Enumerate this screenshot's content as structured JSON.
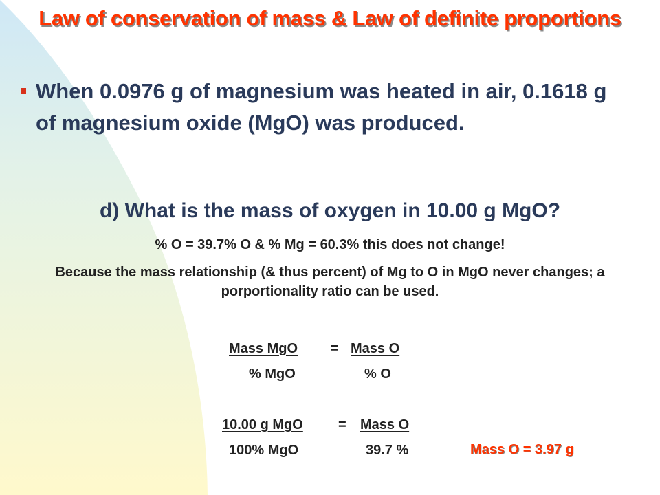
{
  "title": "Law of conservation of mass & Law of definite proportions",
  "bullet": "When 0.0976 g of magnesium was heated in air, 0.1618 g of magnesium oxide (MgO) was produced.",
  "question": "d) What is the mass of oxygen in 10.00 g MgO?",
  "percent_line": "% O = 39.7% O & % Mg = 60.3% this does not change!",
  "because_line": "Because the mass relationship (& thus percent) of Mg to O in MgO never changes; a porportionality ratio can be used.",
  "equation1": {
    "left_numerator": "Mass MgO",
    "equals": "=",
    "right_numerator": "Mass O",
    "left_denominator": "% MgO",
    "right_denominator": "% O"
  },
  "equation2": {
    "left_numerator": "10.00 g MgO",
    "equals": "=",
    "right_numerator": "Mass O",
    "left_denominator": "100% MgO",
    "right_denominator": "39.7 %"
  },
  "answer": "Mass O = 3.97 g",
  "colors": {
    "title": "#ff3300",
    "body_text": "#2a3a5a",
    "bullet": "#d8321b",
    "arc_top": "#cfe8f6",
    "arc_bottom": "#fff9cc"
  }
}
